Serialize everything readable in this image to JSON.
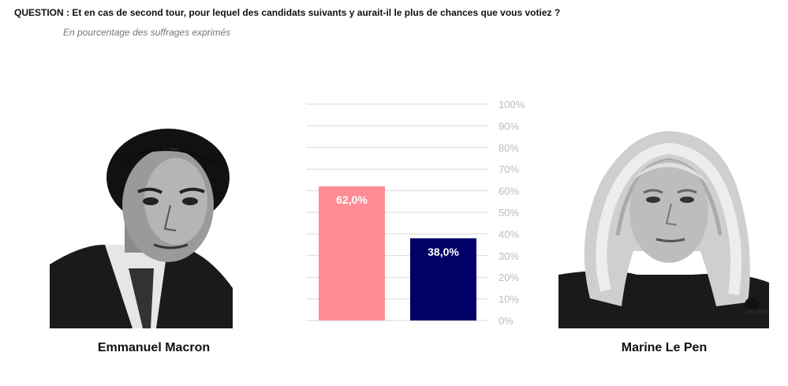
{
  "header": {
    "question": "QUESTION : Et en cas de second tour, pour lequel des candidats suivants y aurait-il le plus de chances que vous votiez ?",
    "subtitle": "En pourcentage des suffrages exprimés"
  },
  "candidates": {
    "left": {
      "name": "Emmanuel Macron",
      "icon": "portrait-photo-icon"
    },
    "right": {
      "name": "Marine Le Pen",
      "icon": "portrait-photo-icon"
    }
  },
  "chart_data": {
    "type": "bar",
    "categories": [
      "Emmanuel Macron",
      "Marine Le Pen"
    ],
    "values": [
      62.0,
      38.0
    ],
    "data_labels": [
      "62,0%",
      "38,0%"
    ],
    "colors": [
      "#ff8c94",
      "#000066"
    ],
    "ylim": [
      0,
      100
    ],
    "yticks": [
      0,
      10,
      20,
      30,
      40,
      50,
      60,
      70,
      80,
      90,
      100
    ],
    "ytick_labels": [
      "0%",
      "10%",
      "20%",
      "30%",
      "40%",
      "50%",
      "60%",
      "70%",
      "80%",
      "90%",
      "100%"
    ],
    "yaxis_position": "right",
    "grid": true,
    "title": "",
    "xlabel": "",
    "ylabel": ""
  }
}
